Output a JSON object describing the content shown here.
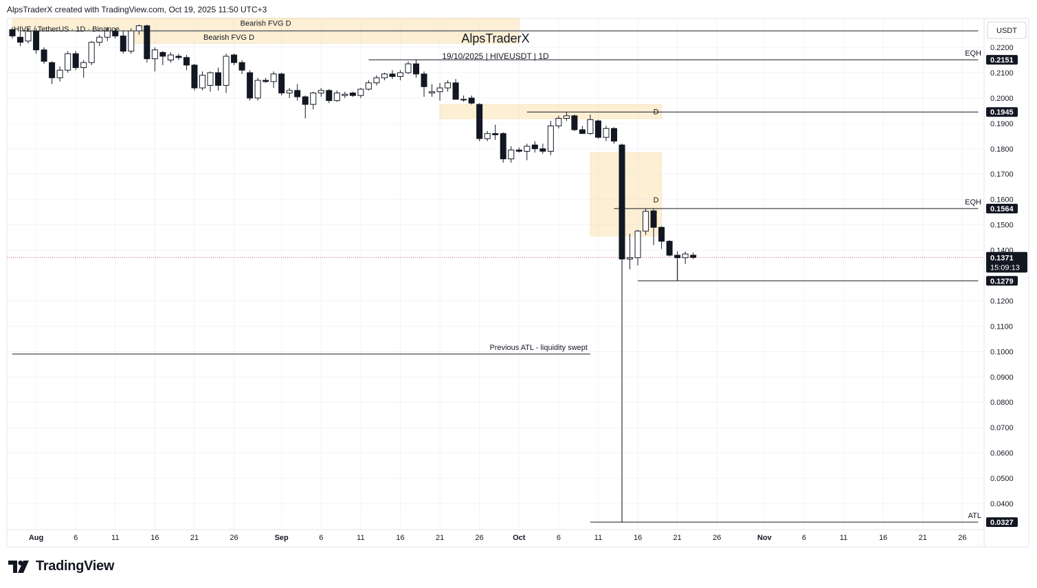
{
  "header": {
    "credit": "AlpsTraderX created with TradingView.com, Oct 19, 2025 11:50 UTC+3"
  },
  "footer": {
    "brand": "TradingView"
  },
  "chart_data": {
    "type": "candlestick",
    "symbol_line": "HIVE / TetherUS · 1D · Binance",
    "watermark_title": "AlpsTraderX",
    "watermark_subtitle": "19/10/2025 | HIVEUSDT | 1D",
    "currency": "USDT",
    "ylim": [
      0.0327,
      0.23
    ],
    "y_ticks": [
      "0.2200",
      "0.2100",
      "0.2000",
      "0.1900",
      "0.1800",
      "0.1700",
      "0.1600",
      "0.1500",
      "0.1400",
      "0.1200",
      "0.1100",
      "0.1000",
      "0.0900",
      "0.0800",
      "0.0700",
      "0.0600",
      "0.0500",
      "0.0400"
    ],
    "x_ticks": [
      {
        "label": "Aug",
        "date": "2025-08-01"
      },
      {
        "label": "6",
        "date": "2025-08-06"
      },
      {
        "label": "11",
        "date": "2025-08-11"
      },
      {
        "label": "16",
        "date": "2025-08-16"
      },
      {
        "label": "21",
        "date": "2025-08-21"
      },
      {
        "label": "26",
        "date": "2025-08-26"
      },
      {
        "label": "Sep",
        "date": "2025-09-01"
      },
      {
        "label": "6",
        "date": "2025-09-06"
      },
      {
        "label": "11",
        "date": "2025-09-11"
      },
      {
        "label": "16",
        "date": "2025-09-16"
      },
      {
        "label": "21",
        "date": "2025-09-21"
      },
      {
        "label": "26",
        "date": "2025-09-26"
      },
      {
        "label": "Oct",
        "date": "2025-10-01"
      },
      {
        "label": "6",
        "date": "2025-10-06"
      },
      {
        "label": "11",
        "date": "2025-10-11"
      },
      {
        "label": "16",
        "date": "2025-10-16"
      },
      {
        "label": "21",
        "date": "2025-10-21"
      },
      {
        "label": "26",
        "date": "2025-10-26"
      },
      {
        "label": "Nov",
        "date": "2025-11-01"
      },
      {
        "label": "6",
        "date": "2025-11-06"
      },
      {
        "label": "11",
        "date": "2025-11-11"
      },
      {
        "label": "16",
        "date": "2025-11-16"
      },
      {
        "label": "21",
        "date": "2025-11-21"
      },
      {
        "label": "26",
        "date": "2025-11-26"
      }
    ],
    "price_labels": [
      {
        "value": 0.2151,
        "text": "0.2151"
      },
      {
        "value": 0.1945,
        "text": "0.1945"
      },
      {
        "value": 0.1564,
        "text": "0.1564"
      },
      {
        "value": 0.1279,
        "text": "0.1279"
      },
      {
        "value": 0.0327,
        "text": "0.0327"
      }
    ],
    "current_price": {
      "value": 0.1371,
      "text": "0.1371",
      "countdown": "15:09:13"
    },
    "zones": [
      {
        "label": "Bearish FVG D",
        "from": "2025-07-29",
        "to": "2025-10-01",
        "top": 0.2315,
        "bottom": 0.2265,
        "label_pos": "top"
      },
      {
        "label": "Bearish FVG D",
        "from": "2025-08-13",
        "to": "2025-10-01",
        "top": 0.226,
        "bottom": 0.2215,
        "label_pos": "top"
      },
      {
        "label": "D",
        "from": "2025-09-21",
        "to": "2025-10-19",
        "top": 0.1975,
        "bottom": 0.1918,
        "label_pos": "right"
      },
      {
        "label": "D",
        "from": "2025-10-10",
        "to": "2025-10-19",
        "top": 0.1785,
        "bottom": 0.1455,
        "label_pos": "right"
      }
    ],
    "levels": [
      {
        "label": "",
        "value": 0.2265,
        "from": "2025-07-30",
        "to": "2025-11-28"
      },
      {
        "label": "EQH",
        "value": 0.2151,
        "from": "2025-09-12",
        "to": "2025-11-28"
      },
      {
        "label": "",
        "value": 0.1945,
        "from": "2025-10-02",
        "to": "2025-11-28"
      },
      {
        "label": "EQH",
        "value": 0.1564,
        "from": "2025-10-13",
        "to": "2025-11-28"
      },
      {
        "label": "",
        "value": 0.1279,
        "from": "2025-10-16",
        "to": "2025-11-28"
      },
      {
        "label": "Previous ATL - liquidity swept",
        "value": 0.099,
        "from": "2025-07-29",
        "to": "2025-10-10"
      },
      {
        "label": "ATL",
        "value": 0.0327,
        "from": "2025-10-10",
        "to": "2025-11-28"
      }
    ],
    "candles": [
      {
        "d": "2025-07-29",
        "o": 0.227,
        "h": 0.228,
        "l": 0.2235,
        "c": 0.2245
      },
      {
        "d": "2025-07-30",
        "o": 0.224,
        "h": 0.2262,
        "l": 0.2205,
        "c": 0.222
      },
      {
        "d": "2025-07-31",
        "o": 0.2225,
        "h": 0.2275,
        "l": 0.2215,
        "c": 0.2265
      },
      {
        "d": "2025-08-01",
        "o": 0.2265,
        "h": 0.2275,
        "l": 0.2175,
        "c": 0.219
      },
      {
        "d": "2025-08-02",
        "o": 0.219,
        "h": 0.22,
        "l": 0.2135,
        "c": 0.2145
      },
      {
        "d": "2025-08-03",
        "o": 0.214,
        "h": 0.2145,
        "l": 0.2055,
        "c": 0.208
      },
      {
        "d": "2025-08-04",
        "o": 0.208,
        "h": 0.2125,
        "l": 0.2065,
        "c": 0.211
      },
      {
        "d": "2025-08-05",
        "o": 0.211,
        "h": 0.2185,
        "l": 0.21,
        "c": 0.2175
      },
      {
        "d": "2025-08-06",
        "o": 0.2175,
        "h": 0.2185,
        "l": 0.211,
        "c": 0.212
      },
      {
        "d": "2025-08-07",
        "o": 0.212,
        "h": 0.215,
        "l": 0.208,
        "c": 0.214
      },
      {
        "d": "2025-08-08",
        "o": 0.214,
        "h": 0.2225,
        "l": 0.213,
        "c": 0.222
      },
      {
        "d": "2025-08-09",
        "o": 0.222,
        "h": 0.225,
        "l": 0.2205,
        "c": 0.224
      },
      {
        "d": "2025-08-10",
        "o": 0.224,
        "h": 0.228,
        "l": 0.2225,
        "c": 0.2265
      },
      {
        "d": "2025-08-11",
        "o": 0.2265,
        "h": 0.2275,
        "l": 0.2235,
        "c": 0.2245
      },
      {
        "d": "2025-08-12",
        "o": 0.2245,
        "h": 0.2265,
        "l": 0.2175,
        "c": 0.2185
      },
      {
        "d": "2025-08-13",
        "o": 0.2185,
        "h": 0.2275,
        "l": 0.2175,
        "c": 0.2265
      },
      {
        "d": "2025-08-14",
        "o": 0.2265,
        "h": 0.229,
        "l": 0.225,
        "c": 0.2285
      },
      {
        "d": "2025-08-15",
        "o": 0.2285,
        "h": 0.229,
        "l": 0.214,
        "c": 0.2155
      },
      {
        "d": "2025-08-16",
        "o": 0.2155,
        "h": 0.22,
        "l": 0.2105,
        "c": 0.219
      },
      {
        "d": "2025-08-17",
        "o": 0.218,
        "h": 0.2185,
        "l": 0.213,
        "c": 0.2165
      },
      {
        "d": "2025-08-18",
        "o": 0.215,
        "h": 0.218,
        "l": 0.214,
        "c": 0.217
      },
      {
        "d": "2025-08-19",
        "o": 0.2165,
        "h": 0.2175,
        "l": 0.215,
        "c": 0.216
      },
      {
        "d": "2025-08-20",
        "o": 0.216,
        "h": 0.217,
        "l": 0.211,
        "c": 0.213
      },
      {
        "d": "2025-08-21",
        "o": 0.213,
        "h": 0.2135,
        "l": 0.203,
        "c": 0.204
      },
      {
        "d": "2025-08-22",
        "o": 0.204,
        "h": 0.2105,
        "l": 0.203,
        "c": 0.209
      },
      {
        "d": "2025-08-23",
        "o": 0.205,
        "h": 0.2105,
        "l": 0.2025,
        "c": 0.21
      },
      {
        "d": "2025-08-24",
        "o": 0.21,
        "h": 0.212,
        "l": 0.203,
        "c": 0.205
      },
      {
        "d": "2025-08-25",
        "o": 0.205,
        "h": 0.2175,
        "l": 0.202,
        "c": 0.2165
      },
      {
        "d": "2025-08-26",
        "o": 0.217,
        "h": 0.2175,
        "l": 0.213,
        "c": 0.214
      },
      {
        "d": "2025-08-27",
        "o": 0.214,
        "h": 0.215,
        "l": 0.2095,
        "c": 0.211
      },
      {
        "d": "2025-08-28",
        "o": 0.21,
        "h": 0.211,
        "l": 0.199,
        "c": 0.2
      },
      {
        "d": "2025-08-29",
        "o": 0.2,
        "h": 0.208,
        "l": 0.199,
        "c": 0.207
      },
      {
        "d": "2025-08-30",
        "o": 0.207,
        "h": 0.208,
        "l": 0.206,
        "c": 0.2065
      },
      {
        "d": "2025-08-31",
        "o": 0.2065,
        "h": 0.2105,
        "l": 0.204,
        "c": 0.2095
      },
      {
        "d": "2025-09-01",
        "o": 0.2095,
        "h": 0.21,
        "l": 0.201,
        "c": 0.202
      },
      {
        "d": "2025-09-02",
        "o": 0.202,
        "h": 0.204,
        "l": 0.2,
        "c": 0.203
      },
      {
        "d": "2025-09-03",
        "o": 0.203,
        "h": 0.2055,
        "l": 0.199,
        "c": 0.2005
      },
      {
        "d": "2025-09-04",
        "o": 0.2005,
        "h": 0.201,
        "l": 0.192,
        "c": 0.1975
      },
      {
        "d": "2025-09-05",
        "o": 0.1975,
        "h": 0.2025,
        "l": 0.1955,
        "c": 0.202
      },
      {
        "d": "2025-09-06",
        "o": 0.202,
        "h": 0.204,
        "l": 0.2005,
        "c": 0.203
      },
      {
        "d": "2025-09-07",
        "o": 0.203,
        "h": 0.2035,
        "l": 0.198,
        "c": 0.199
      },
      {
        "d": "2025-09-08",
        "o": 0.199,
        "h": 0.203,
        "l": 0.1985,
        "c": 0.202
      },
      {
        "d": "2025-09-09",
        "o": 0.201,
        "h": 0.2025,
        "l": 0.2,
        "c": 0.2015
      },
      {
        "d": "2025-09-10",
        "o": 0.202,
        "h": 0.2025,
        "l": 0.2005,
        "c": 0.201
      },
      {
        "d": "2025-09-11",
        "o": 0.201,
        "h": 0.204,
        "l": 0.2,
        "c": 0.2035
      },
      {
        "d": "2025-09-12",
        "o": 0.2035,
        "h": 0.207,
        "l": 0.203,
        "c": 0.206
      },
      {
        "d": "2025-09-13",
        "o": 0.206,
        "h": 0.209,
        "l": 0.205,
        "c": 0.208
      },
      {
        "d": "2025-09-14",
        "o": 0.208,
        "h": 0.21,
        "l": 0.207,
        "c": 0.2095
      },
      {
        "d": "2025-09-15",
        "o": 0.2095,
        "h": 0.211,
        "l": 0.2075,
        "c": 0.2085
      },
      {
        "d": "2025-09-16",
        "o": 0.2085,
        "h": 0.211,
        "l": 0.207,
        "c": 0.21
      },
      {
        "d": "2025-09-17",
        "o": 0.21,
        "h": 0.2145,
        "l": 0.2095,
        "c": 0.2135
      },
      {
        "d": "2025-09-18",
        "o": 0.2135,
        "h": 0.2152,
        "l": 0.208,
        "c": 0.2095
      },
      {
        "d": "2025-09-19",
        "o": 0.2095,
        "h": 0.2105,
        "l": 0.2005,
        "c": 0.2045
      },
      {
        "d": "2025-09-20",
        "o": 0.202,
        "h": 0.2055,
        "l": 0.2005,
        "c": 0.2025
      },
      {
        "d": "2025-09-21",
        "o": 0.2025,
        "h": 0.206,
        "l": 0.199,
        "c": 0.204
      },
      {
        "d": "2025-09-22",
        "o": 0.204,
        "h": 0.207,
        "l": 0.2025,
        "c": 0.206
      },
      {
        "d": "2025-09-23",
        "o": 0.206,
        "h": 0.2075,
        "l": 0.1995,
        "c": 0.1995
      },
      {
        "d": "2025-09-24",
        "o": 0.1995,
        "h": 0.201,
        "l": 0.1985,
        "c": 0.1995
      },
      {
        "d": "2025-09-25",
        "o": 0.2,
        "h": 0.201,
        "l": 0.1975,
        "c": 0.198
      },
      {
        "d": "2025-09-26",
        "o": 0.1975,
        "h": 0.198,
        "l": 0.183,
        "c": 0.184
      },
      {
        "d": "2025-09-27",
        "o": 0.184,
        "h": 0.187,
        "l": 0.183,
        "c": 0.186
      },
      {
        "d": "2025-09-28",
        "o": 0.186,
        "h": 0.1895,
        "l": 0.1835,
        "c": 0.1855
      },
      {
        "d": "2025-09-29",
        "o": 0.186,
        "h": 0.1865,
        "l": 0.1745,
        "c": 0.176
      },
      {
        "d": "2025-09-30",
        "o": 0.176,
        "h": 0.181,
        "l": 0.1745,
        "c": 0.1795
      },
      {
        "d": "2025-10-01",
        "o": 0.1795,
        "h": 0.1805,
        "l": 0.1785,
        "c": 0.179
      },
      {
        "d": "2025-10-02",
        "o": 0.179,
        "h": 0.182,
        "l": 0.1755,
        "c": 0.181
      },
      {
        "d": "2025-10-03",
        "o": 0.1815,
        "h": 0.183,
        "l": 0.1785,
        "c": 0.18
      },
      {
        "d": "2025-10-04",
        "o": 0.18,
        "h": 0.182,
        "l": 0.178,
        "c": 0.179
      },
      {
        "d": "2025-10-05",
        "o": 0.179,
        "h": 0.191,
        "l": 0.1775,
        "c": 0.189
      },
      {
        "d": "2025-10-06",
        "o": 0.189,
        "h": 0.193,
        "l": 0.188,
        "c": 0.192
      },
      {
        "d": "2025-10-07",
        "o": 0.192,
        "h": 0.1945,
        "l": 0.191,
        "c": 0.193
      },
      {
        "d": "2025-10-08",
        "o": 0.193,
        "h": 0.1935,
        "l": 0.187,
        "c": 0.1875
      },
      {
        "d": "2025-10-09",
        "o": 0.1875,
        "h": 0.189,
        "l": 0.186,
        "c": 0.186
      },
      {
        "d": "2025-10-10",
        "o": 0.186,
        "h": 0.1935,
        "l": 0.1855,
        "c": 0.1915
      },
      {
        "d": "2025-10-11",
        "o": 0.191,
        "h": 0.1915,
        "l": 0.184,
        "c": 0.1845
      },
      {
        "d": "2025-10-12",
        "o": 0.1845,
        "h": 0.189,
        "l": 0.183,
        "c": 0.188
      },
      {
        "d": "2025-10-13",
        "o": 0.188,
        "h": 0.1885,
        "l": 0.182,
        "c": 0.183
      },
      {
        "d": "2025-10-14",
        "o": 0.1815,
        "h": 0.182,
        "l": 0.0327,
        "c": 0.1365
      },
      {
        "d": "2025-10-15",
        "o": 0.1365,
        "h": 0.1465,
        "l": 0.1325,
        "c": 0.137
      },
      {
        "d": "2025-10-16",
        "o": 0.137,
        "h": 0.148,
        "l": 0.134,
        "c": 0.1475
      },
      {
        "d": "2025-10-17",
        "o": 0.1475,
        "h": 0.1563,
        "l": 0.146,
        "c": 0.1553
      },
      {
        "d": "2025-10-18",
        "o": 0.1555,
        "h": 0.1564,
        "l": 0.142,
        "c": 0.149
      },
      {
        "d": "2025-10-19",
        "o": 0.149,
        "h": 0.1495,
        "l": 0.1405,
        "c": 0.1435
      }
    ],
    "tail_candles": [
      {
        "d": "2025-10-20",
        "o": 0.1435,
        "h": 0.144,
        "l": 0.1375,
        "c": 0.138
      },
      {
        "d": "2025-10-21",
        "o": 0.138,
        "h": 0.1395,
        "l": 0.1279,
        "c": 0.137
      },
      {
        "d": "2025-10-22",
        "o": 0.137,
        "h": 0.1395,
        "l": 0.1345,
        "c": 0.1385
      },
      {
        "d": "2025-10-23",
        "o": 0.138,
        "h": 0.139,
        "l": 0.1365,
        "c": 0.1371
      }
    ]
  }
}
